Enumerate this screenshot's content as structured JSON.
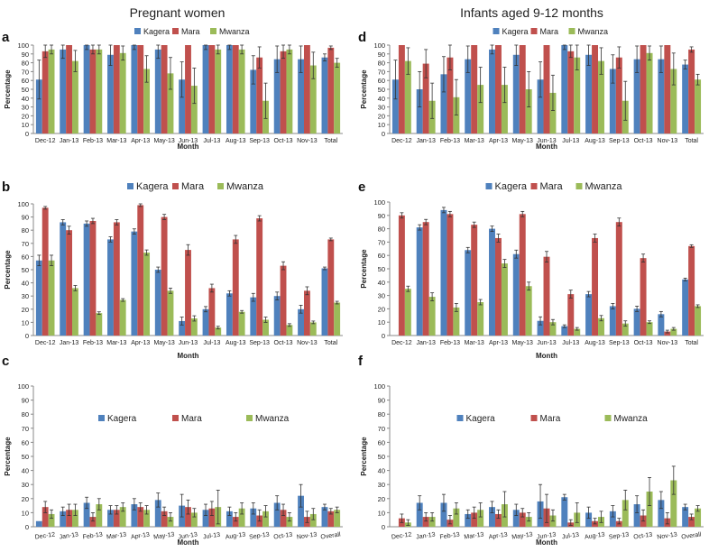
{
  "headers": {
    "left": "Pregnant women",
    "right": "Infants aged 9-12 months"
  },
  "colors": {
    "Kagera": "#4f81bd",
    "Mara": "#c0504d",
    "Mwanza": "#9bbb59"
  },
  "chart_data": [
    {
      "type": "bar",
      "panel_label": "a",
      "categories": [
        "Dec-12",
        "Jan-13",
        "Feb-13",
        "Mar-13",
        "Apr-13",
        "May-13",
        "Jun-13",
        "Jul-13",
        "Aug-13",
        "Sep-13",
        "Oct-13",
        "Nov-13",
        "Total"
      ],
      "series": [
        {
          "name": "Kagera",
          "values": [
            61,
            95,
            100,
            89,
            100,
            95,
            61,
            100,
            100,
            72,
            84,
            84,
            86
          ],
          "errors": [
            22,
            10,
            5,
            12,
            5,
            10,
            20,
            5,
            5,
            16,
            15,
            15,
            4
          ]
        },
        {
          "name": "Mara",
          "values": [
            93,
            100,
            95,
            100,
            100,
            100,
            100,
            100,
            100,
            86,
            93,
            100,
            97
          ],
          "errors": [
            7,
            0,
            5,
            0,
            0,
            0,
            0,
            0,
            0,
            12,
            8,
            0,
            2
          ]
        },
        {
          "name": "Mwanza",
          "values": [
            95,
            82,
            95,
            91,
            73,
            68,
            54,
            95,
            95,
            37,
            95,
            77,
            80
          ],
          "errors": [
            5,
            12,
            5,
            8,
            15,
            18,
            20,
            5,
            5,
            20,
            5,
            15,
            5
          ]
        }
      ],
      "xlabel": "Month",
      "ylabel": "Percentage",
      "ylim": [
        0,
        100
      ],
      "yticks": [
        0,
        10,
        20,
        30,
        40,
        50,
        60,
        70,
        80,
        90,
        100
      ],
      "legend": "top"
    },
    {
      "type": "bar",
      "panel_label": "b",
      "categories": [
        "Dec-12",
        "Jan-13",
        "Feb-13",
        "Mar-13",
        "Apr-13",
        "May-13",
        "Jun-13",
        "Jul-13",
        "Aug-13",
        "Sep-13",
        "Oct-13",
        "Nov-13",
        "Total"
      ],
      "series": [
        {
          "name": "Kagera",
          "values": [
            57,
            86,
            85,
            73,
            79,
            50,
            11,
            20,
            32,
            29,
            30,
            20,
            51
          ],
          "errors": [
            4,
            2,
            2,
            2,
            2,
            2,
            3,
            2,
            2,
            3,
            3,
            3,
            1
          ]
        },
        {
          "name": "Mara",
          "values": [
            97,
            80,
            87,
            86,
            99,
            90,
            65,
            36,
            73,
            89,
            53,
            34,
            73
          ],
          "errors": [
            1,
            3,
            2,
            2,
            1,
            2,
            4,
            3,
            3,
            2,
            3,
            3,
            1
          ]
        },
        {
          "name": "Mwanza",
          "values": [
            57,
            36,
            17,
            27,
            63,
            34,
            13,
            6,
            18,
            12,
            8,
            10,
            25
          ],
          "errors": [
            4,
            2,
            1,
            1,
            2,
            2,
            2,
            1,
            1,
            2,
            1,
            1,
            1
          ]
        }
      ],
      "xlabel": "Month",
      "ylabel": "Percentage",
      "ylim": [
        0,
        100
      ],
      "yticks": [
        0,
        10,
        20,
        30,
        40,
        50,
        60,
        70,
        80,
        90,
        100
      ],
      "legend": "top"
    },
    {
      "type": "bar",
      "panel_label": "c",
      "categories": [
        "Dec-12",
        "Jan-13",
        "Feb-13",
        "Mar-13",
        "Apr-13",
        "May-13",
        "Jun-13",
        "Jul-13",
        "Aug-13",
        "Sep-13",
        "Oct-13",
        "Nov-13",
        "Overall"
      ],
      "series": [
        {
          "name": "Kagera",
          "values": [
            4,
            11,
            17,
            12,
            16,
            19,
            15,
            12,
            11,
            13,
            17,
            22,
            14
          ],
          "errors": [
            0,
            3,
            4,
            3,
            4,
            5,
            8,
            4,
            3,
            4,
            5,
            8,
            2
          ]
        },
        {
          "name": "Mara",
          "values": [
            14,
            12,
            7,
            12,
            14,
            11,
            14,
            13,
            7,
            8,
            12,
            7,
            11
          ],
          "errors": [
            4,
            4,
            3,
            3,
            3,
            3,
            5,
            5,
            3,
            4,
            4,
            4,
            2
          ]
        },
        {
          "name": "Mwanza",
          "values": [
            9,
            12,
            16,
            14,
            12,
            7,
            10,
            14,
            13,
            11,
            7,
            9,
            12
          ],
          "errors": [
            3,
            4,
            4,
            3,
            3,
            3,
            3,
            12,
            4,
            4,
            3,
            4,
            2
          ]
        }
      ],
      "xlabel": "Month",
      "ylabel": "Percentage",
      "ylim": [
        0,
        100
      ],
      "yticks": [
        0,
        10,
        20,
        30,
        40,
        50,
        60,
        70,
        80,
        90,
        100
      ],
      "legend": "middle"
    },
    {
      "type": "bar",
      "panel_label": "d",
      "categories": [
        "Dec-12",
        "Jan-13",
        "Feb-13",
        "Mar-13",
        "Apr-13",
        "May-13",
        "Jun-13",
        "Jul-13",
        "Aug-13",
        "Sep-13",
        "Oct-13",
        "Nov-13",
        "Total"
      ],
      "series": [
        {
          "name": "Kagera",
          "values": [
            61,
            50,
            67,
            84,
            95,
            89,
            61,
            100,
            89,
            73,
            84,
            84,
            78
          ],
          "errors": [
            22,
            20,
            20,
            15,
            5,
            12,
            20,
            5,
            12,
            16,
            15,
            15,
            5
          ]
        },
        {
          "name": "Mara",
          "values": [
            100,
            79,
            86,
            100,
            100,
            100,
            100,
            93,
            100,
            86,
            100,
            100,
            95
          ],
          "errors": [
            0,
            16,
            14,
            0,
            0,
            0,
            0,
            7,
            0,
            12,
            0,
            0,
            3
          ]
        },
        {
          "name": "Mwanza",
          "values": [
            82,
            37,
            41,
            55,
            55,
            50,
            46,
            86,
            82,
            37,
            91,
            73,
            61
          ],
          "errors": [
            15,
            20,
            20,
            20,
            20,
            20,
            20,
            14,
            15,
            22,
            8,
            18,
            6
          ]
        }
      ],
      "xlabel": "Month",
      "ylabel": "Percentage",
      "ylim": [
        0,
        100
      ],
      "yticks": [
        0,
        10,
        20,
        30,
        40,
        50,
        60,
        70,
        80,
        90,
        100
      ],
      "legend": "top"
    },
    {
      "type": "bar",
      "panel_label": "e",
      "categories": [
        "Dec-12",
        "Jan-13",
        "Feb-13",
        "Mar-13",
        "Apr-13",
        "May-13",
        "Jun-13",
        "Jul-13",
        "Aug-13",
        "Sep-13",
        "Oct-13",
        "Nov-13",
        "Total"
      ],
      "series": [
        {
          "name": "Kagera",
          "values": [
            0,
            81,
            94,
            64,
            80,
            61,
            11,
            7,
            31,
            22,
            20,
            16,
            42
          ],
          "errors": [
            0,
            2,
            2,
            2,
            2,
            3,
            3,
            1,
            2,
            2,
            2,
            2,
            1
          ]
        },
        {
          "name": "Mara",
          "values": [
            90,
            85,
            91,
            83,
            73,
            91,
            59,
            31,
            73,
            85,
            58,
            3,
            67
          ],
          "errors": [
            2,
            2,
            2,
            2,
            3,
            2,
            4,
            3,
            3,
            3,
            3,
            1,
            1
          ]
        },
        {
          "name": "Mwanza",
          "values": [
            35,
            29,
            21,
            25,
            54,
            37,
            10,
            5,
            13,
            9,
            10,
            5,
            22
          ],
          "errors": [
            2,
            3,
            3,
            2,
            3,
            3,
            2,
            1,
            2,
            2,
            1,
            1,
            1
          ]
        }
      ],
      "xlabel": "Month",
      "ylabel": "Percentage",
      "ylim": [
        0,
        100
      ],
      "yticks": [
        0,
        10,
        20,
        30,
        40,
        50,
        60,
        70,
        80,
        90,
        100
      ],
      "legend": "top"
    },
    {
      "type": "bar",
      "panel_label": "f",
      "categories": [
        "Dec-12",
        "Jan-13",
        "Feb-13",
        "Mar-13",
        "Apr-13",
        "May-13",
        "Jun-13",
        "Jul-13",
        "Aug-13",
        "Sep-13",
        "Oct-13",
        "Nov-13",
        "Overall"
      ],
      "series": [
        {
          "name": "Kagera",
          "values": [
            0,
            17,
            17,
            9,
            14,
            12,
            18,
            21,
            10,
            11,
            16,
            19,
            14
          ],
          "errors": [
            0,
            5,
            6,
            3,
            4,
            4,
            12,
            2,
            4,
            4,
            6,
            6,
            2
          ]
        },
        {
          "name": "Mara",
          "values": [
            6,
            7,
            5,
            10,
            9,
            10,
            13,
            3,
            4,
            4,
            8,
            6,
            7
          ],
          "errors": [
            3,
            3,
            3,
            4,
            3,
            3,
            10,
            2,
            2,
            2,
            4,
            4,
            2
          ]
        },
        {
          "name": "Mwanza",
          "values": [
            3,
            7,
            13,
            12,
            16,
            7,
            8,
            10,
            7,
            19,
            25,
            33,
            13
          ],
          "errors": [
            2,
            3,
            4,
            5,
            9,
            3,
            4,
            7,
            4,
            7,
            10,
            10,
            2
          ]
        }
      ],
      "xlabel": "Month",
      "ylabel": "Percentage",
      "ylim": [
        0,
        100
      ],
      "yticks": [
        0,
        10,
        20,
        30,
        40,
        50,
        60,
        70,
        80,
        90,
        100
      ],
      "legend": "middle"
    }
  ]
}
